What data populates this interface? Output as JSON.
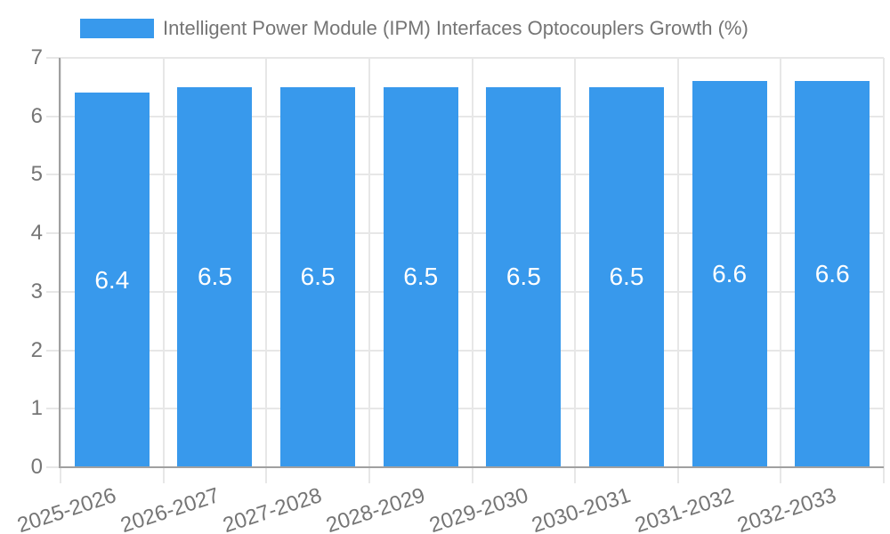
{
  "legend": {
    "label": "Intelligent Power Module (IPM) Interfaces Optocouplers Growth (%)"
  },
  "chart_data": {
    "type": "bar",
    "title": "Intelligent Power Module (IPM) Interfaces Optocouplers Growth (%)",
    "series_name": "Intelligent Power Module (IPM) Interfaces Optocouplers Growth (%)",
    "categories": [
      "2025-2026",
      "2026-2027",
      "2027-2028",
      "2028-2029",
      "2029-2030",
      "2030-2031",
      "2031-2032",
      "2032-2033"
    ],
    "values": [
      6.4,
      6.5,
      6.5,
      6.5,
      6.5,
      6.5,
      6.6,
      6.6
    ],
    "value_labels": [
      "6.4",
      "6.5",
      "6.5",
      "6.5",
      "6.5",
      "6.5",
      "6.6",
      "6.6"
    ],
    "xlabel": "",
    "ylabel": "",
    "ylim": [
      0,
      7
    ],
    "yticks": [
      0,
      1,
      2,
      3,
      4,
      5,
      6,
      7
    ],
    "grid": true,
    "legend_position": "top",
    "x_label_rotation_deg": -18,
    "colors": {
      "bar": "#3899EC",
      "grid": "#E7E7E7",
      "axis": "#A0A0A0",
      "text": "#757575",
      "bar_label": "#FFFFFF",
      "background": "#FFFFFF"
    }
  }
}
